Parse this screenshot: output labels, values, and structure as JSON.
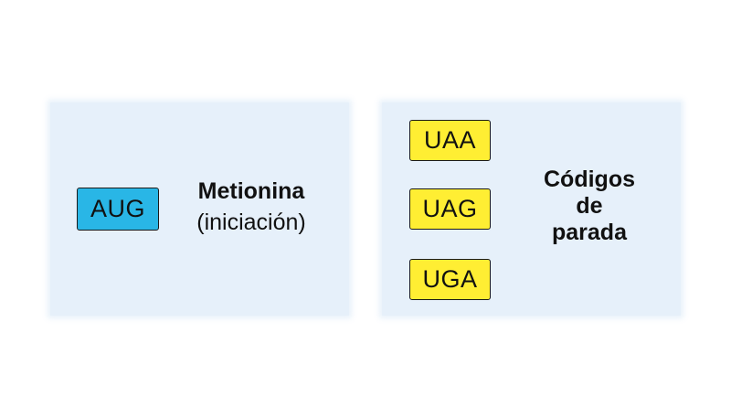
{
  "start": {
    "codon": "AUG",
    "amino_acid": "Metionina",
    "note": "(iniciación)",
    "color": "#29b6e6"
  },
  "stop": {
    "codons": [
      "UAA",
      "UAG",
      "UGA"
    ],
    "title_lines": [
      "Códigos",
      "de",
      "parada"
    ],
    "color": "#ffee33"
  },
  "panel_color": "#e6f0fa"
}
